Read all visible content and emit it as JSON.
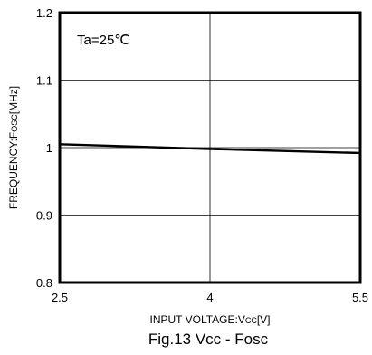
{
  "chart_data": {
    "type": "line",
    "caption": "Fig.13 Vcc - Fosc",
    "annotation": "Ta=25℃",
    "xlabel": {
      "main": "INPUT VOLTAGE:V",
      "sub": "CC",
      "unit": "[V]"
    },
    "ylabel": {
      "main": "FREQUENCY:F",
      "sub": "OSC",
      "unit": "[MHz]"
    },
    "xlim": [
      2.5,
      5.5
    ],
    "ylim": [
      0.8,
      1.2
    ],
    "x_ticks": [
      "2.5",
      "4",
      "5.5"
    ],
    "y_ticks": [
      "0.8",
      "0.9",
      "1",
      "1.1",
      "1.2"
    ],
    "grid": true,
    "series": [
      {
        "x": [
          2.5,
          4.0,
          5.5
        ],
        "y": [
          1.005,
          0.998,
          0.992
        ]
      }
    ]
  }
}
